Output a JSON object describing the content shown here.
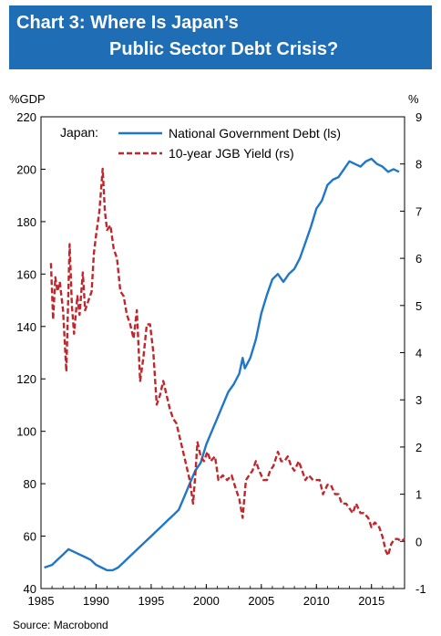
{
  "banner": {
    "line1": "Chart 3: Where Is Japan’s",
    "line2": "Public Sector Debt Crisis?"
  },
  "source": "Source: Macrobond",
  "chart_data": {
    "type": "line",
    "x_unit_label": "",
    "left_axis": {
      "unit": "%GDP",
      "min": 40,
      "max": 220,
      "ticks": [
        40,
        60,
        80,
        100,
        120,
        140,
        160,
        180,
        200,
        220
      ]
    },
    "right_axis": {
      "unit": "%",
      "min": -1,
      "max": 9,
      "ticks": [
        -1,
        0,
        1,
        2,
        3,
        4,
        5,
        6,
        7,
        8,
        9
      ]
    },
    "x_axis": {
      "min": 1985,
      "max": 2018,
      "ticks": [
        1985,
        1990,
        1995,
        2000,
        2005,
        2010,
        2015
      ]
    },
    "legend": {
      "title": "Japan:",
      "placement": "top-left"
    },
    "series": [
      {
        "name": "National Government Debt (ls)",
        "axis": "left",
        "color": "#1f77c8",
        "style": "solid",
        "points": [
          [
            1985.3,
            48
          ],
          [
            1986,
            49
          ],
          [
            1986.5,
            51
          ],
          [
            1987,
            53
          ],
          [
            1987.5,
            55
          ],
          [
            1988,
            54
          ],
          [
            1988.5,
            53
          ],
          [
            1989,
            52
          ],
          [
            1989.5,
            51
          ],
          [
            1990,
            49
          ],
          [
            1990.5,
            48
          ],
          [
            1991,
            47
          ],
          [
            1991.5,
            47
          ],
          [
            1992,
            48
          ],
          [
            1992.5,
            50
          ],
          [
            1993,
            52
          ],
          [
            1993.5,
            54
          ],
          [
            1994,
            56
          ],
          [
            1994.5,
            58
          ],
          [
            1995,
            60
          ],
          [
            1995.5,
            62
          ],
          [
            1996,
            64
          ],
          [
            1996.5,
            66
          ],
          [
            1997,
            68
          ],
          [
            1997.5,
            70
          ],
          [
            1998,
            75
          ],
          [
            1998.5,
            80
          ],
          [
            1999,
            85
          ],
          [
            1999.5,
            88
          ],
          [
            2000,
            95
          ],
          [
            2000.5,
            100
          ],
          [
            2001,
            105
          ],
          [
            2001.5,
            110
          ],
          [
            2002,
            115
          ],
          [
            2002.5,
            118
          ],
          [
            2003,
            122
          ],
          [
            2003.3,
            128
          ],
          [
            2003.5,
            124
          ],
          [
            2004,
            128
          ],
          [
            2004.5,
            135
          ],
          [
            2005,
            145
          ],
          [
            2005.5,
            152
          ],
          [
            2006,
            158
          ],
          [
            2006.5,
            160
          ],
          [
            2007,
            157
          ],
          [
            2007.5,
            160
          ],
          [
            2008,
            162
          ],
          [
            2008.5,
            166
          ],
          [
            2009,
            172
          ],
          [
            2009.5,
            178
          ],
          [
            2010,
            185
          ],
          [
            2010.5,
            188
          ],
          [
            2011,
            194
          ],
          [
            2011.5,
            196
          ],
          [
            2012,
            197
          ],
          [
            2012.5,
            200
          ],
          [
            2013,
            203
          ],
          [
            2013.5,
            202
          ],
          [
            2014,
            201
          ],
          [
            2014.5,
            203
          ],
          [
            2015,
            204
          ],
          [
            2015.5,
            202
          ],
          [
            2016,
            201
          ],
          [
            2016.5,
            199
          ],
          [
            2017,
            200
          ],
          [
            2017.5,
            199
          ]
        ]
      },
      {
        "name": "10-year JGB Yield (rs)",
        "axis": "right",
        "color": "#c0272d",
        "style": "dashed",
        "points": [
          [
            1985.9,
            5.9
          ],
          [
            1986.1,
            4.7
          ],
          [
            1986.3,
            5.6
          ],
          [
            1986.5,
            5.3
          ],
          [
            1986.7,
            5.5
          ],
          [
            1987.0,
            4.9
          ],
          [
            1987.3,
            3.6
          ],
          [
            1987.6,
            6.3
          ],
          [
            1987.8,
            5.0
          ],
          [
            1988.0,
            4.4
          ],
          [
            1988.3,
            5.2
          ],
          [
            1988.5,
            4.8
          ],
          [
            1988.8,
            5.7
          ],
          [
            1989.0,
            4.9
          ],
          [
            1989.3,
            5.1
          ],
          [
            1989.6,
            5.3
          ],
          [
            1989.8,
            6.1
          ],
          [
            1990.0,
            6.5
          ],
          [
            1990.3,
            7.0
          ],
          [
            1990.6,
            7.9
          ],
          [
            1990.8,
            7.0
          ],
          [
            1991.0,
            6.6
          ],
          [
            1991.3,
            6.7
          ],
          [
            1991.6,
            6.2
          ],
          [
            1991.9,
            6.0
          ],
          [
            1992.2,
            5.3
          ],
          [
            1992.5,
            5.2
          ],
          [
            1992.8,
            4.8
          ],
          [
            1993.1,
            4.6
          ],
          [
            1993.4,
            4.3
          ],
          [
            1993.7,
            4.9
          ],
          [
            1994.0,
            3.4
          ],
          [
            1994.3,
            3.9
          ],
          [
            1994.6,
            4.6
          ],
          [
            1994.9,
            4.6
          ],
          [
            1995.2,
            4.0
          ],
          [
            1995.5,
            2.9
          ],
          [
            1995.8,
            3.1
          ],
          [
            1996.1,
            3.4
          ],
          [
            1996.4,
            3.1
          ],
          [
            1996.7,
            2.8
          ],
          [
            1997.0,
            2.6
          ],
          [
            1997.3,
            2.5
          ],
          [
            1997.6,
            2.2
          ],
          [
            1997.9,
            1.9
          ],
          [
            1998.2,
            1.6
          ],
          [
            1998.5,
            1.3
          ],
          [
            1998.8,
            0.8
          ],
          [
            1999.0,
            1.4
          ],
          [
            1999.2,
            2.1
          ],
          [
            1999.5,
            1.8
          ],
          [
            1999.8,
            1.7
          ],
          [
            2000.1,
            1.9
          ],
          [
            2000.4,
            1.7
          ],
          [
            2000.8,
            1.8
          ],
          [
            2001.1,
            1.3
          ],
          [
            2001.5,
            1.4
          ],
          [
            2001.9,
            1.3
          ],
          [
            2002.3,
            1.4
          ],
          [
            2002.7,
            1.1
          ],
          [
            2003.0,
            0.9
          ],
          [
            2003.3,
            0.5
          ],
          [
            2003.6,
            1.3
          ],
          [
            2003.9,
            1.4
          ],
          [
            2004.2,
            1.5
          ],
          [
            2004.5,
            1.7
          ],
          [
            2004.8,
            1.5
          ],
          [
            2005.2,
            1.3
          ],
          [
            2005.5,
            1.3
          ],
          [
            2005.8,
            1.5
          ],
          [
            2006.1,
            1.6
          ],
          [
            2006.5,
            1.9
          ],
          [
            2006.8,
            1.7
          ],
          [
            2007.1,
            1.7
          ],
          [
            2007.4,
            1.8
          ],
          [
            2007.7,
            1.6
          ],
          [
            2008.0,
            1.5
          ],
          [
            2008.4,
            1.7
          ],
          [
            2008.7,
            1.5
          ],
          [
            2009.0,
            1.3
          ],
          [
            2009.3,
            1.4
          ],
          [
            2009.7,
            1.3
          ],
          [
            2010.0,
            1.3
          ],
          [
            2010.3,
            1.3
          ],
          [
            2010.6,
            1.0
          ],
          [
            2011.0,
            1.2
          ],
          [
            2011.3,
            1.2
          ],
          [
            2011.7,
            1.0
          ],
          [
            2012.0,
            1.0
          ],
          [
            2012.3,
            0.8
          ],
          [
            2012.7,
            0.8
          ],
          [
            2013.0,
            0.7
          ],
          [
            2013.3,
            0.6
          ],
          [
            2013.6,
            0.8
          ],
          [
            2014.0,
            0.6
          ],
          [
            2014.3,
            0.6
          ],
          [
            2014.7,
            0.5
          ],
          [
            2015.0,
            0.3
          ],
          [
            2015.3,
            0.4
          ],
          [
            2015.7,
            0.3
          ],
          [
            2016.0,
            0.1
          ],
          [
            2016.3,
            -0.2
          ],
          [
            2016.5,
            -0.3
          ],
          [
            2016.8,
            -0.05
          ],
          [
            2017.1,
            0.05
          ],
          [
            2017.4,
            0.05
          ],
          [
            2017.7,
            0.0
          ],
          [
            2018.0,
            0.05
          ]
        ]
      }
    ]
  }
}
